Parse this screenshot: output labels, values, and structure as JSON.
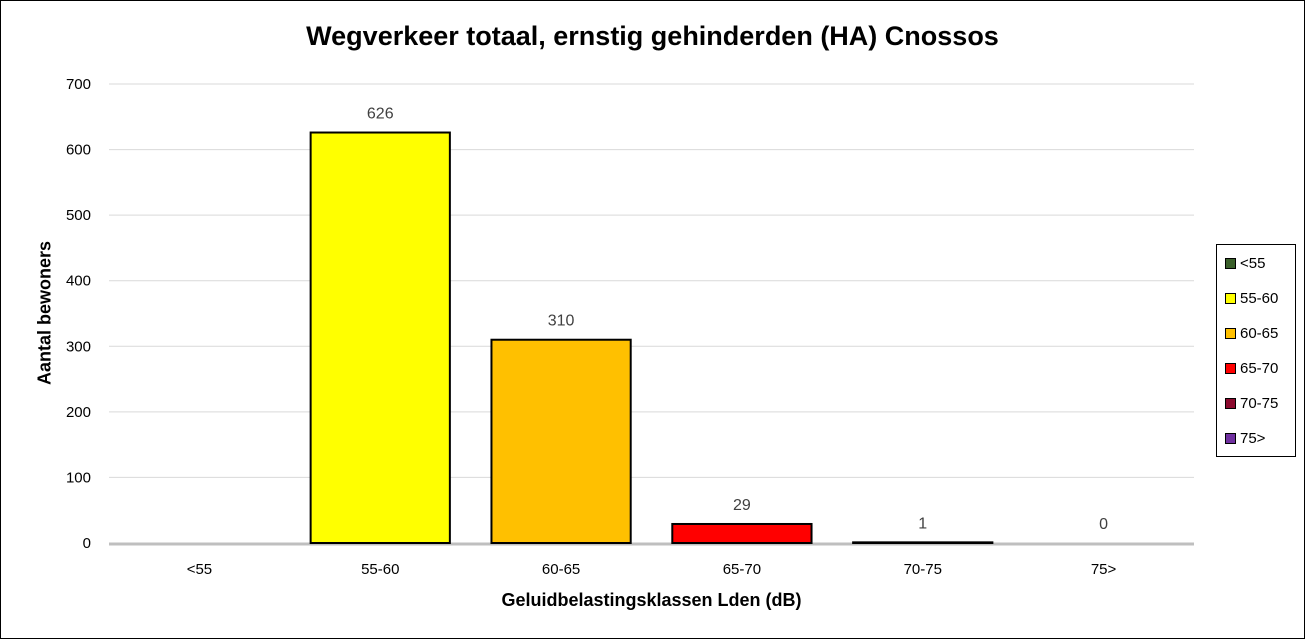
{
  "chart_data": {
    "type": "bar",
    "title": "Wegverkeer totaal, ernstig gehinderden (HA) Cnossos",
    "xlabel": "Geluidbelastingsklassen Lden (dB)",
    "ylabel": "Aantal bewoners",
    "categories": [
      "<55",
      "55-60",
      "60-65",
      "65-70",
      "70-75",
      "75>"
    ],
    "values": [
      null,
      626,
      310,
      29,
      1,
      0
    ],
    "data_labels": [
      "",
      "626",
      "310",
      "29",
      "1",
      "0"
    ],
    "colors": [
      "#3a5f2a",
      "#ffff00",
      "#ffc000",
      "#ff0000",
      "#8b0a2e",
      "#7030a0"
    ],
    "ylim": [
      0,
      700
    ],
    "yticks": [
      0,
      100,
      200,
      300,
      400,
      500,
      600,
      700
    ],
    "grid": true,
    "legend_position": "right",
    "legend": [
      "<55",
      "55-60",
      "60-65",
      "65-70",
      "70-75",
      "75>"
    ]
  }
}
